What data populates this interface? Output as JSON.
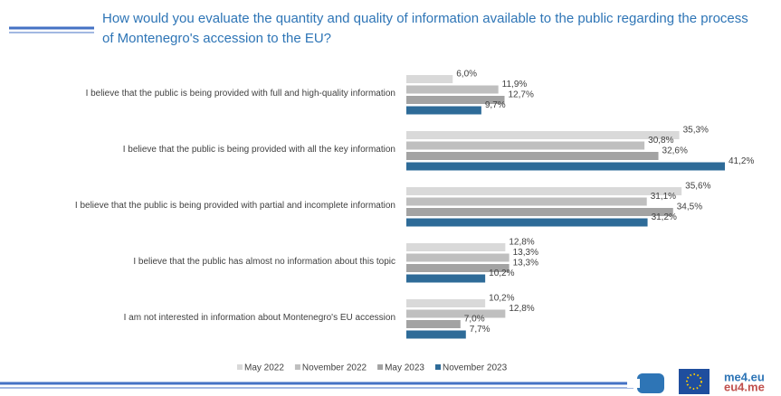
{
  "chart_data": {
    "type": "bar",
    "orientation": "horizontal",
    "title": "How would you evaluate the quantity and quality of information available to the public regarding the process of Montenegro's accession to the EU?",
    "categories": [
      "I believe that the public is being provided with full and high-quality information",
      "I believe that the public is being provided with all the key information",
      "I believe that the public is being provided with partial and incomplete information",
      "I believe that the public has almost no information about this topic",
      "I am not interested in information about Montenegro's EU accession"
    ],
    "series": [
      {
        "name": "May 2022",
        "color": "#d9d9d9",
        "values": [
          6.0,
          35.3,
          35.6,
          12.8,
          10.2
        ],
        "value_labels": [
          "6,0%",
          "35,3%",
          "35,6%",
          "12,8%",
          "10,2%"
        ]
      },
      {
        "name": "November 2022",
        "color": "#bfbfbf",
        "values": [
          11.9,
          30.8,
          31.1,
          13.3,
          12.8
        ],
        "value_labels": [
          "11,9%",
          "30,8%",
          "31,1%",
          "13,3%",
          "12,8%"
        ]
      },
      {
        "name": "May 2023",
        "color": "#a3a3a3",
        "values": [
          12.7,
          32.6,
          34.5,
          13.3,
          7.0
        ],
        "value_labels": [
          "12,7%",
          "32,6%",
          "34,5%",
          "13,3%",
          "7,0%"
        ]
      },
      {
        "name": "November 2023",
        "color": "#2e6b98",
        "values": [
          9.7,
          41.2,
          31.2,
          10.2,
          7.7
        ],
        "value_labels": [
          "9,7%",
          "41,2%",
          "31,2%",
          "10,2%",
          "7,7%"
        ]
      }
    ],
    "legend": "bottom"
  },
  "footer_logo": [
    "me4.eu",
    "eu4.me"
  ]
}
